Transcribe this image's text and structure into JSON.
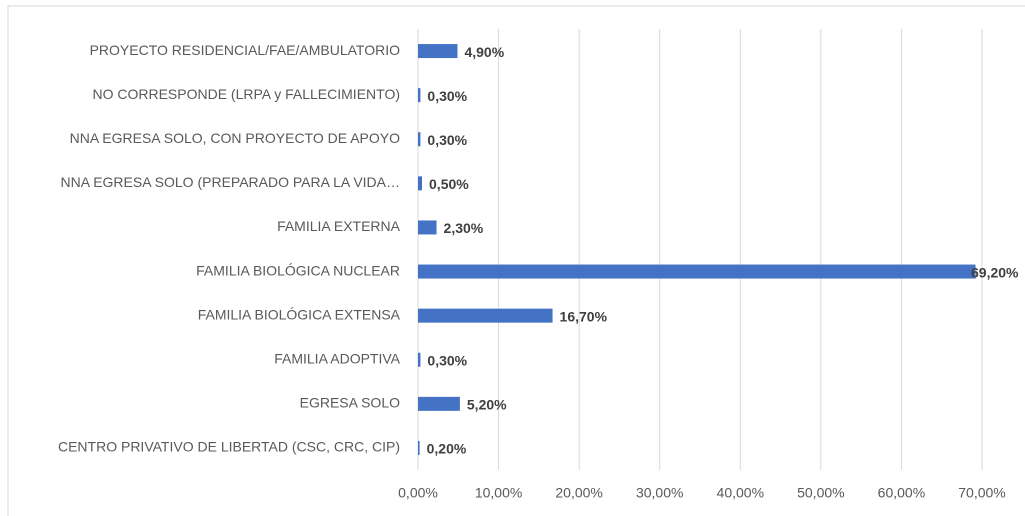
{
  "chart_data": {
    "type": "hbar",
    "categories": [
      "PROYECTO RESIDENCIAL/FAE/AMBULATORIO",
      "NO CORRESPONDE (LRPA y FALLECIMIENTO)",
      "NNA EGRESA SOLO, CON PROYECTO DE APOYO",
      "NNA EGRESA SOLO (PREPARADO PARA LA VIDA…",
      "FAMILIA EXTERNA",
      "FAMILIA BIOLÓGICA NUCLEAR",
      "FAMILIA BIOLÓGICA EXTENSA",
      "FAMILIA ADOPTIVA",
      "EGRESA SOLO",
      "CENTRO PRIVATIVO DE LIBERTAD (CSC, CRC, CIP)"
    ],
    "values": [
      4.9,
      0.3,
      0.3,
      0.5,
      2.3,
      69.2,
      16.7,
      0.3,
      5.2,
      0.2
    ],
    "value_labels": [
      "4,90%",
      "0,30%",
      "0,30%",
      "0,50%",
      "2,30%",
      "69,20%",
      "16,70%",
      "0,30%",
      "5,20%",
      "0,20%"
    ],
    "color": "#4472c4",
    "xlim": [
      0,
      70
    ],
    "xticks": [
      {
        "value": 0,
        "label": "0,00%"
      },
      {
        "value": 10,
        "label": "10,00%"
      },
      {
        "value": 20,
        "label": "20,00%"
      },
      {
        "value": 30,
        "label": "30,00%"
      },
      {
        "value": 40,
        "label": "40,00%"
      },
      {
        "value": 50,
        "label": "50,00%"
      },
      {
        "value": 60,
        "label": "60,00%"
      },
      {
        "value": 70,
        "label": "70,00%"
      }
    ],
    "grid": true
  }
}
